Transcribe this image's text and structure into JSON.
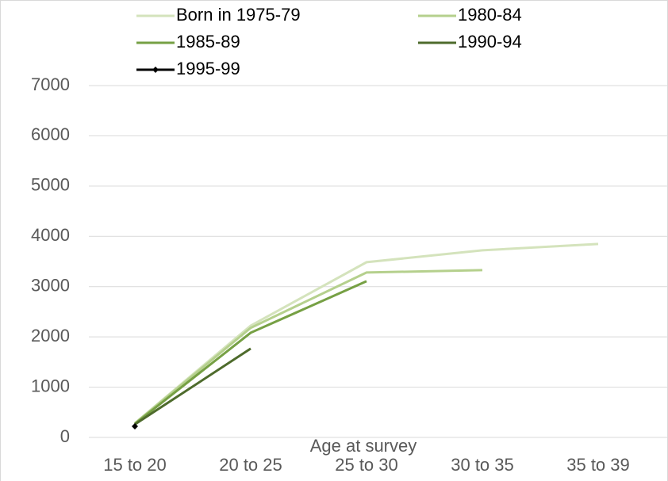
{
  "chart_data": {
    "type": "line",
    "x_label": "Age at survey",
    "categories": [
      "15 to 20",
      "20 to 25",
      "25 to 30",
      "30 to 35",
      "35 to 39"
    ],
    "series": [
      {
        "name": "Born in 1975-79",
        "color": "#d4e3bc",
        "values": [
          284,
          2224,
          3486,
          3722,
          3849
        ]
      },
      {
        "name": "1980-84",
        "color": "#b5d08d",
        "values": [
          280,
          2180,
          3281,
          3328,
          null
        ]
      },
      {
        "name": "1985-89",
        "color": "#76a044",
        "values": [
          270,
          2082,
          3107,
          null,
          null
        ]
      },
      {
        "name": "1990-94",
        "color": "#4e6b2c",
        "values": [
          260,
          1767,
          null,
          null,
          null
        ]
      },
      {
        "name": "1995-99",
        "color": "#000000",
        "marker": "diamond",
        "values": [
          221,
          null,
          null,
          null,
          null
        ]
      }
    ],
    "ylim": [
      0,
      7000
    ],
    "yticks": [
      0,
      1000,
      2000,
      3000,
      4000,
      5000,
      6000,
      7000
    ],
    "grid": true,
    "legend": "top"
  }
}
